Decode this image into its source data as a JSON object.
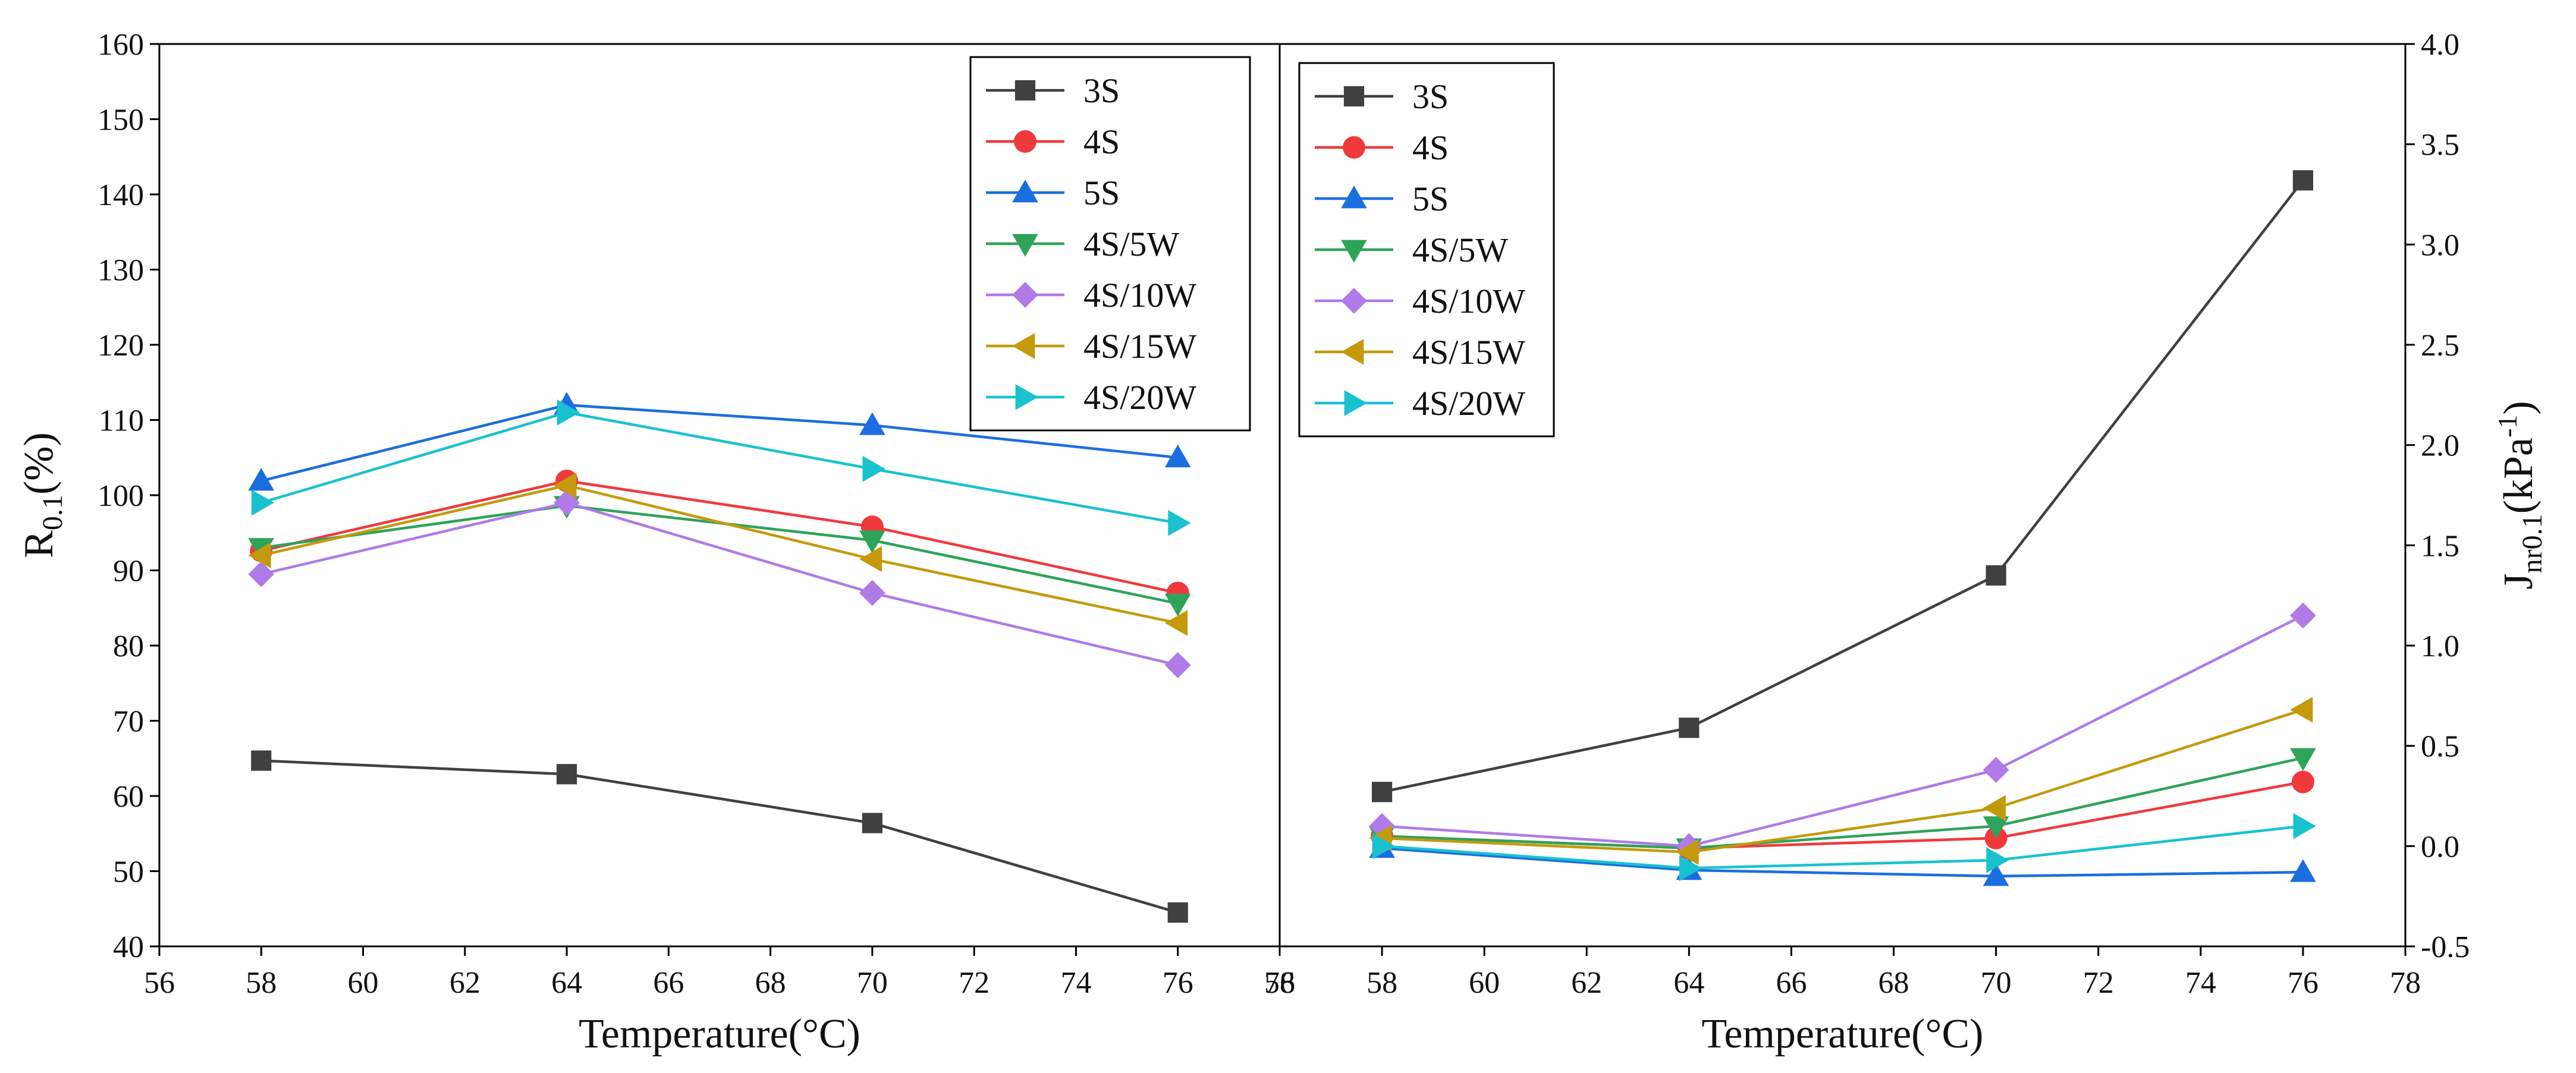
{
  "chart_data": [
    {
      "type": "line",
      "panel": "left",
      "xlabel": "Temperature(°C)",
      "ylabel": {
        "base": "R",
        "sub": "0.1",
        "rest": "(%)"
      },
      "xlim": [
        56,
        78
      ],
      "ylim": [
        40,
        160
      ],
      "xticks": [
        56,
        58,
        60,
        62,
        64,
        66,
        68,
        70,
        72,
        74,
        76,
        78
      ],
      "yticks": [
        40,
        50,
        60,
        70,
        80,
        90,
        100,
        110,
        120,
        130,
        140,
        150,
        160
      ],
      "legend_position": "top-right",
      "x": [
        58,
        64,
        70,
        76
      ],
      "series": [
        {
          "name": "3S",
          "color": "#404040",
          "marker": "square",
          "values": [
            64.7,
            62.9,
            56.4,
            44.5
          ]
        },
        {
          "name": "4S",
          "color": "#f0393b",
          "marker": "circle",
          "values": [
            92.6,
            101.9,
            95.8,
            87.0
          ]
        },
        {
          "name": "5S",
          "color": "#1b6ee0",
          "marker": "triangle-up",
          "values": [
            101.9,
            112.0,
            109.3,
            105.0
          ]
        },
        {
          "name": "4S/5W",
          "color": "#2ea35a",
          "marker": "triangle-down",
          "values": [
            93.0,
            98.6,
            94.0,
            85.6
          ]
        },
        {
          "name": "4S/10W",
          "color": "#b07ae8",
          "marker": "diamond",
          "values": [
            89.5,
            99.0,
            87.0,
            77.4
          ]
        },
        {
          "name": "4S/15W",
          "color": "#c49a0c",
          "marker": "triangle-left",
          "values": [
            92.0,
            101.3,
            91.5,
            83.0
          ]
        },
        {
          "name": "4S/20W",
          "color": "#19c2cf",
          "marker": "triangle-right",
          "values": [
            99.0,
            111.0,
            103.5,
            96.3
          ]
        }
      ]
    },
    {
      "type": "line",
      "panel": "right",
      "xlabel": "Temperature(°C)",
      "ylabel": {
        "base": "J",
        "sub": "nr0.1",
        "rest": "(kPa",
        "sup": "-1",
        "end": ")"
      },
      "ytick_labels": [
        "-0.5",
        "0.0",
        "0.5",
        "1.0",
        "1.5",
        "2.0",
        "2.5",
        "3.0",
        "3.5",
        "4.0"
      ],
      "xlim": [
        56,
        78
      ],
      "ylim": [
        -0.5,
        4.0
      ],
      "xticks": [
        56,
        58,
        60,
        62,
        64,
        66,
        68,
        70,
        72,
        74,
        76,
        78
      ],
      "yticks": [
        -0.5,
        0.0,
        0.5,
        1.0,
        1.5,
        2.0,
        2.5,
        3.0,
        3.5,
        4.0
      ],
      "legend_position": "top-left",
      "x": [
        58,
        64,
        70,
        76
      ],
      "series": [
        {
          "name": "3S",
          "color": "#404040",
          "marker": "square",
          "values": [
            0.27,
            0.59,
            1.35,
            3.32
          ]
        },
        {
          "name": "4S",
          "color": "#f0393b",
          "marker": "circle",
          "values": [
            0.05,
            -0.01,
            0.04,
            0.32
          ]
        },
        {
          "name": "5S",
          "color": "#1b6ee0",
          "marker": "triangle-up",
          "values": [
            -0.01,
            -0.12,
            -0.15,
            -0.13
          ]
        },
        {
          "name": "4S/5W",
          "color": "#2ea35a",
          "marker": "triangle-down",
          "values": [
            0.05,
            -0.01,
            0.1,
            0.44
          ]
        },
        {
          "name": "4S/10W",
          "color": "#b07ae8",
          "marker": "diamond",
          "values": [
            0.1,
            0.0,
            0.38,
            1.15
          ]
        },
        {
          "name": "4S/15W",
          "color": "#c49a0c",
          "marker": "triangle-left",
          "values": [
            0.04,
            -0.03,
            0.19,
            0.68
          ]
        },
        {
          "name": "4S/20W",
          "color": "#19c2cf",
          "marker": "triangle-right",
          "values": [
            0.0,
            -0.11,
            -0.07,
            0.1
          ]
        }
      ]
    }
  ]
}
